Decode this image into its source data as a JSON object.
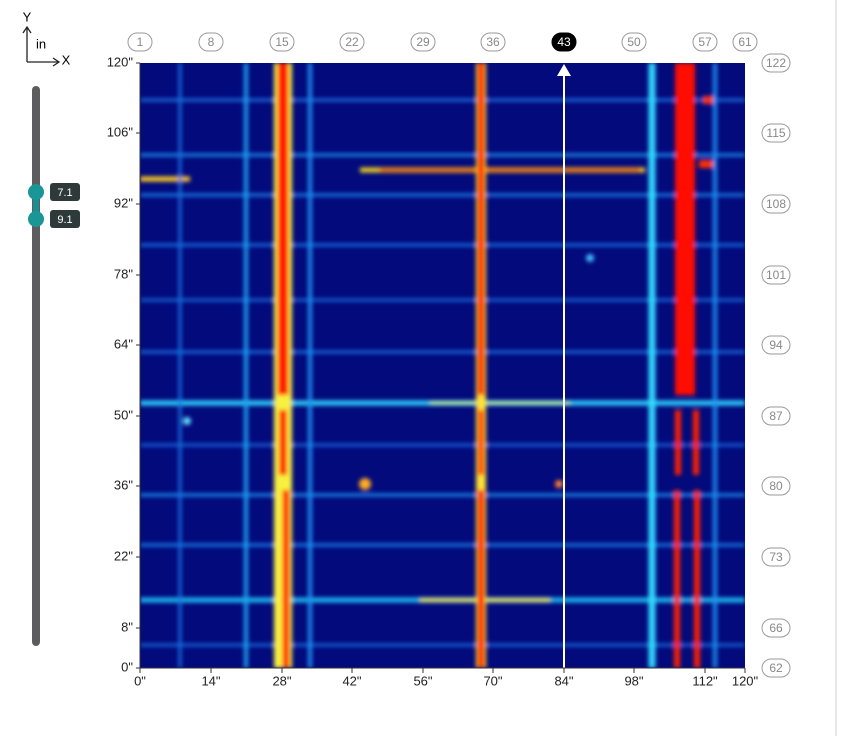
{
  "axis_indicator": {
    "y": "Y",
    "unit": "in",
    "x": "X"
  },
  "slider": {
    "upper": "7.1",
    "lower": "9.1"
  },
  "top_markers": [
    "1",
    "8",
    "15",
    "22",
    "29",
    "36",
    "43",
    "50",
    "57",
    "61"
  ],
  "selected_top_marker": "43",
  "right_markers": [
    "122",
    "115",
    "108",
    "101",
    "94",
    "87",
    "80",
    "73",
    "66",
    "62"
  ],
  "y_axis_ticks": [
    "120\"",
    "106\"",
    "92\"",
    "78\"",
    "64\"",
    "50\"",
    "36\"",
    "22\"",
    "8\"",
    "0\""
  ],
  "x_axis_ticks": [
    "0\"",
    "14\"",
    "28\"",
    "42\"",
    "56\"",
    "70\"",
    "84\"",
    "98\"",
    "112\"",
    "120\""
  ]
}
